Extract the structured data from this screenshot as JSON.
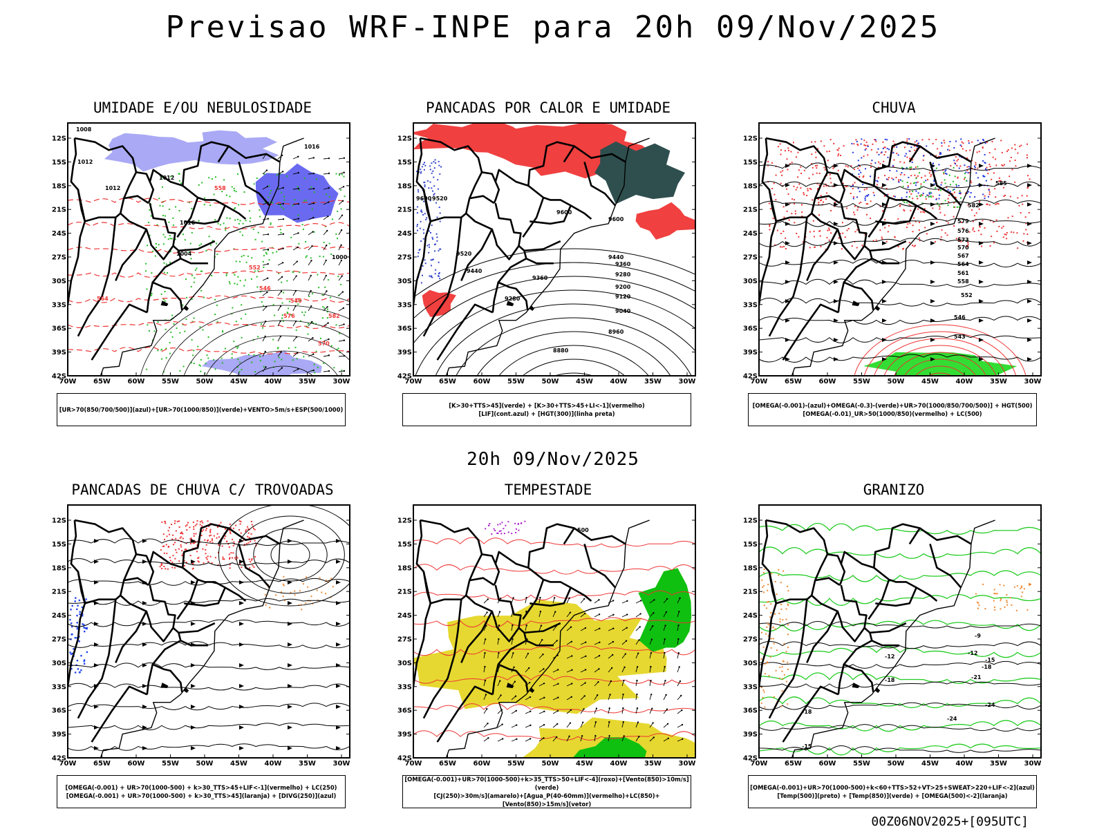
{
  "header": {
    "title": "Previsao WRF-INPE  para 20h 09/Nov/2025"
  },
  "middle_title": "20h 09/Nov/2025",
  "footer_run": "00Z06NOV2025+[095UTC]",
  "axes": {
    "lat_ticks": [
      "12S",
      "15S",
      "18S",
      "21S",
      "24S",
      "27S",
      "30S",
      "33S",
      "36S",
      "39S",
      "42S"
    ],
    "lon_ticks": [
      "70W",
      "65W",
      "60W",
      "55W",
      "50W",
      "45W",
      "40W",
      "35W",
      "30W"
    ]
  },
  "colors": {
    "humidity_blue": "#a9a9f5",
    "humidity_green": "#22bb22",
    "red_contour": "#ee3333",
    "instability_red": "#f04040",
    "dark_teal": "#2f4f4f",
    "jet_yellow": "#e6d830",
    "wind_green": "#10c010",
    "hail_orange": "#ee8833"
  },
  "panels": [
    {
      "title": "UMIDADE E/OU NEBULOSIDADE",
      "legend": [
        "[UR>70(850/700/500)](azul)+[UR>70(1000/850)](verde)+VENTO>5m/s+ESP(500/1000)"
      ],
      "labels": [
        "1008",
        "1012",
        "1012",
        "1012",
        "1016",
        "1016",
        "1004",
        "1000",
        "576",
        "570",
        "564",
        "558",
        "552",
        "546",
        "540",
        "582"
      ]
    },
    {
      "title": "PANCADAS POR CALOR E UMIDADE",
      "legend": [
        "[K>30+TTS>45](verde)  +  [K>30+TTS>45+LI<-1](vermelho)",
        "[LIF](cont.azul)  +  [HGT(300)](linha preta)"
      ],
      "labels": [
        "9600",
        "9520",
        "9600",
        "9600",
        "9520",
        "9440",
        "9440",
        "9360",
        "9360",
        "9280",
        "9280",
        "9200",
        "9120",
        "9040",
        "8960",
        "8880"
      ]
    },
    {
      "title": "CHUVA",
      "legend": [
        "[OMEGA(-0.001)-(azul)+OMEGA(-0.3)-(verde)+UR>70(1000/850/700/500)]  +  HGT(500)",
        "[OMEGA(-0.01)_UR>50(1000/850)(vermelho)  +  LC(500)"
      ],
      "labels": [
        "585",
        "582",
        "579",
        "576",
        "573",
        "570",
        "567",
        "564",
        "561",
        "558",
        "552",
        "546",
        "543"
      ]
    },
    {
      "title": "PANCADAS DE CHUVA C/ TROVOADAS",
      "legend": [
        "[OMEGA(-0.001)  +  UR>70(1000-500)  +  k>30_TTS>45+LIF<-1](vermelho)  +  LC(250)",
        "[OMEGA(-0.001)  +  UR>70(1000-500)  +  k>30_TTS>45](laranja)  +  [DIVG(250)](azul)"
      ],
      "labels": []
    },
    {
      "title": "TEMPESTADE",
      "legend": [
        "[OMEGA(-0.001)+UR>70(1000-500)+k>35_TTS>50+LIF<-4](roxo)+[Vento(850)>10m/s](verde)",
        "[CJ(250)>30m/s](amarelo)+[Agua_P(40-60mm)](vermelho)+LC(850)+[Vento(850)>15m/s](vetor)"
      ],
      "labels": [
        "500"
      ]
    },
    {
      "title": "GRANIZO",
      "legend": [
        "[OMEGA(-0.001)+UR>70(1000-500)+k<60+TTS>52+VT>25+SWEAT>220+LIF<-2](azul)",
        "[Temp(500)](preto)  +  [Temp(850)](verde)  +  [OMEGA(500)<-2](laranja)"
      ],
      "labels": [
        "-9",
        "-12",
        "-12",
        "-15",
        "-18",
        "-18",
        "-21",
        "-24",
        "-24",
        "-18",
        "-15"
      ]
    }
  ]
}
